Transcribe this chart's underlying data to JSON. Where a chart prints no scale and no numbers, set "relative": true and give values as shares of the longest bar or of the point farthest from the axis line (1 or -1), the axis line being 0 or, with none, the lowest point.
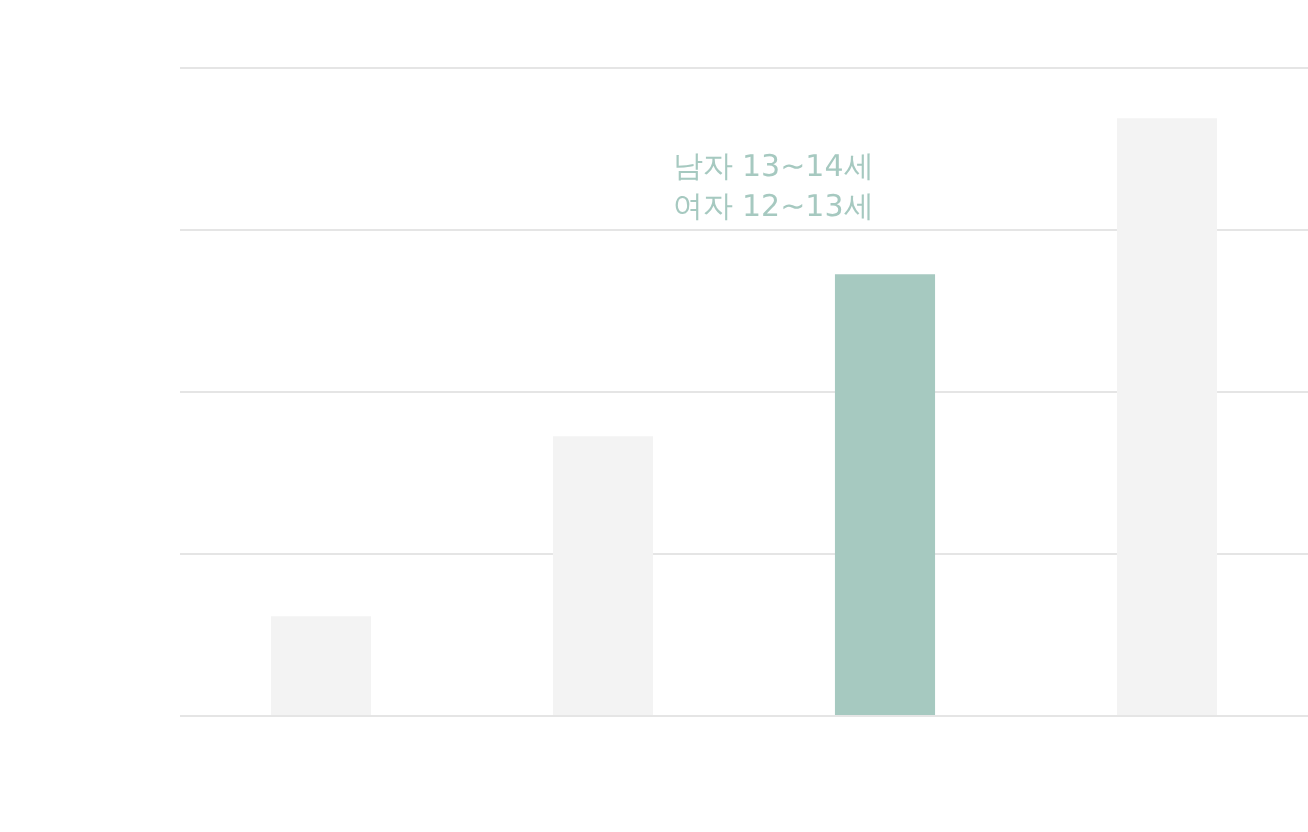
{
  "chart_data": {
    "type": "bar",
    "relative": true,
    "categories": [
      null,
      null,
      null,
      null
    ],
    "values": [
      0.167,
      0.468,
      0.739,
      1
    ],
    "colors": [
      "#f3f3f3",
      "#f3f3f3",
      "#a6c9c0",
      "#f3f3f3"
    ],
    "annotations": [
      "남자 13~14세\n여자 12~13세"
    ],
    "grid": "y",
    "legend": false
  }
}
